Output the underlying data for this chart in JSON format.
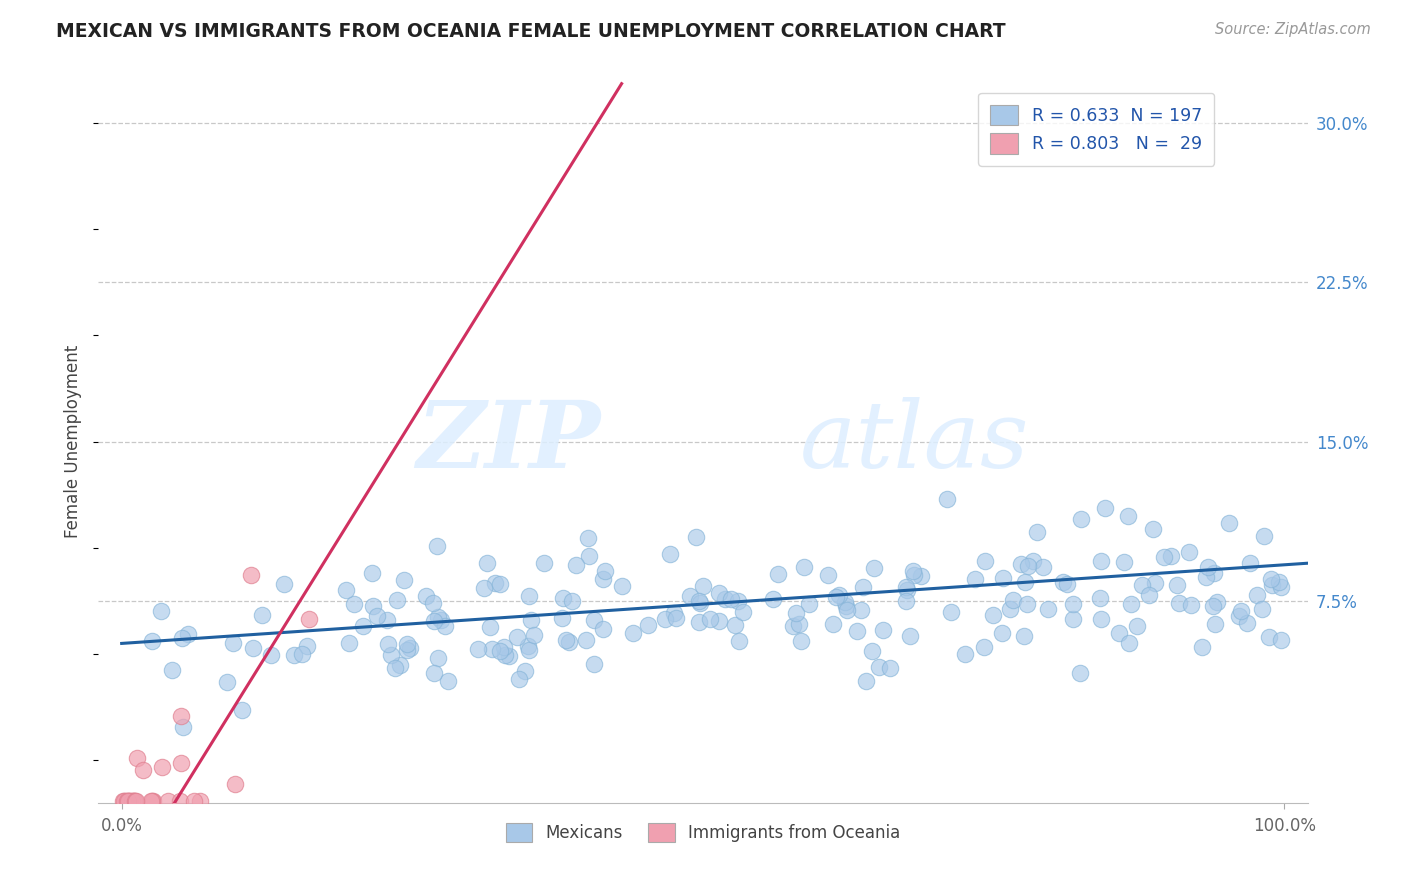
{
  "title": "MEXICAN VS IMMIGRANTS FROM OCEANIA FEMALE UNEMPLOYMENT CORRELATION CHART",
  "source": "Source: ZipAtlas.com",
  "ylabel": "Female Unemployment",
  "xlim": [
    -0.02,
    1.02
  ],
  "ylim": [
    -0.02,
    0.32
  ],
  "yticks": [
    0.075,
    0.15,
    0.225,
    0.3
  ],
  "ytick_labels": [
    "7.5%",
    "15.0%",
    "22.5%",
    "30.0%"
  ],
  "blue_color": "#A8C8E8",
  "blue_edge_color": "#85B4D8",
  "pink_color": "#F0A0B0",
  "pink_edge_color": "#E08090",
  "blue_line_color": "#2060A0",
  "pink_line_color": "#D03060",
  "legend_text_color": "#2255AA",
  "R_blue": 0.633,
  "N_blue": 197,
  "R_pink": 0.803,
  "N_pink": 29,
  "watermark_zip": "ZIP",
  "watermark_atlas": "atlas",
  "background_color": "#FFFFFF",
  "grid_color": "#C8C8C8",
  "title_color": "#222222",
  "label_color": "#444444",
  "tick_color": "#666666",
  "right_tick_color": "#4488CC"
}
